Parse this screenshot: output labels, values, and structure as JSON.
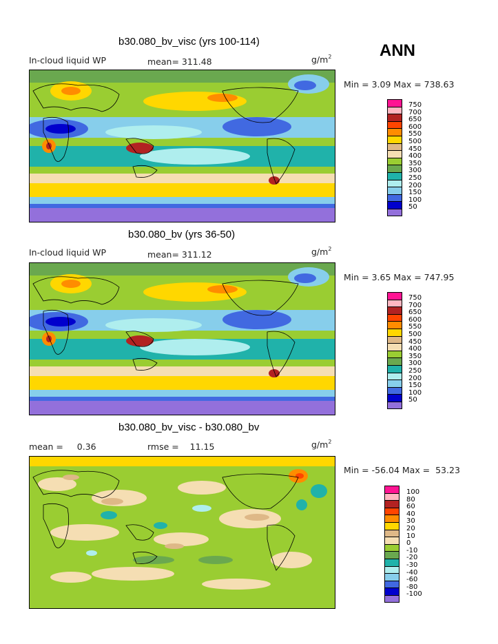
{
  "season": "ANN",
  "unit_base": "g/m",
  "unit_exp": "2",
  "panels": [
    {
      "title": "b30.080_bv_visc (yrs 100-114)",
      "left_label": "In-cloud liquid WP",
      "center_label": "mean= 311.48",
      "min_text": "Min =   3.09 Max = 738.63"
    },
    {
      "title": "b30.080_bv (yrs 36-50)",
      "left_label": "In-cloud liquid WP",
      "center_label": "mean= 311.12",
      "min_text": "Min =   3.65 Max = 747.95"
    },
    {
      "title": "b30.080_bv_visc - b30.080_bv",
      "left_label": "mean =     0.36",
      "center_label": "rmse =    11.15",
      "min_text": "Min = -56.04 Max =  53.23"
    }
  ],
  "legend_abs": {
    "levels": [
      "750",
      "700",
      "650",
      "600",
      "550",
      "500",
      "450",
      "400",
      "350",
      "300",
      "250",
      "200",
      "150",
      "100",
      "50"
    ],
    "colors": [
      "#ff1493",
      "#ffb6c1",
      "#b22222",
      "#ff4500",
      "#ff8c00",
      "#ffd700",
      "#deb887",
      "#f5deb3",
      "#9acd32",
      "#6aa84f",
      "#20b2aa",
      "#afeeee",
      "#87ceeb",
      "#4169e1",
      "#0000cd",
      "#9370db"
    ]
  },
  "legend_diff": {
    "levels": [
      "100",
      "80",
      "60",
      "40",
      "30",
      "20",
      "10",
      "0",
      "-10",
      "-20",
      "-30",
      "-40",
      "-60",
      "-80",
      "-100"
    ],
    "colors": [
      "#ff1493",
      "#ffb6c1",
      "#b22222",
      "#ff4500",
      "#ff8c00",
      "#ffd700",
      "#deb887",
      "#f5deb3",
      "#9acd32",
      "#6aa84f",
      "#20b2aa",
      "#afeeee",
      "#87ceeb",
      "#4169e1",
      "#0000cd",
      "#9370db"
    ]
  }
}
